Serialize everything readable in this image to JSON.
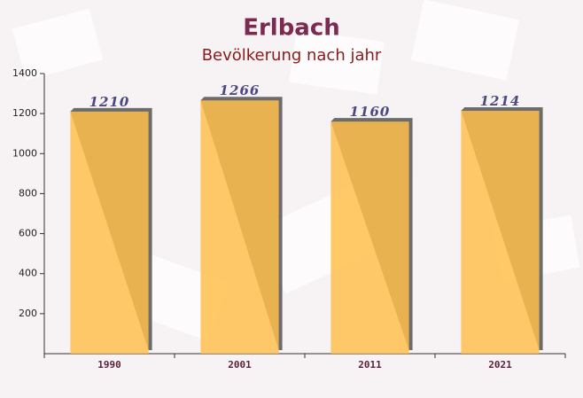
{
  "chart_data": {
    "type": "bar",
    "title": "Erlbach",
    "subtitle": "Bevölkerung nach jahr",
    "categories": [
      "1990",
      "2001",
      "2011",
      "2021"
    ],
    "values": [
      1210,
      1266,
      1160,
      1214
    ],
    "color": "#ffc04d",
    "label_color": "#4a4a80",
    "ylim": [
      0,
      1400
    ],
    "yticks": [
      200,
      400,
      600,
      800,
      1000,
      1200,
      1400
    ]
  }
}
